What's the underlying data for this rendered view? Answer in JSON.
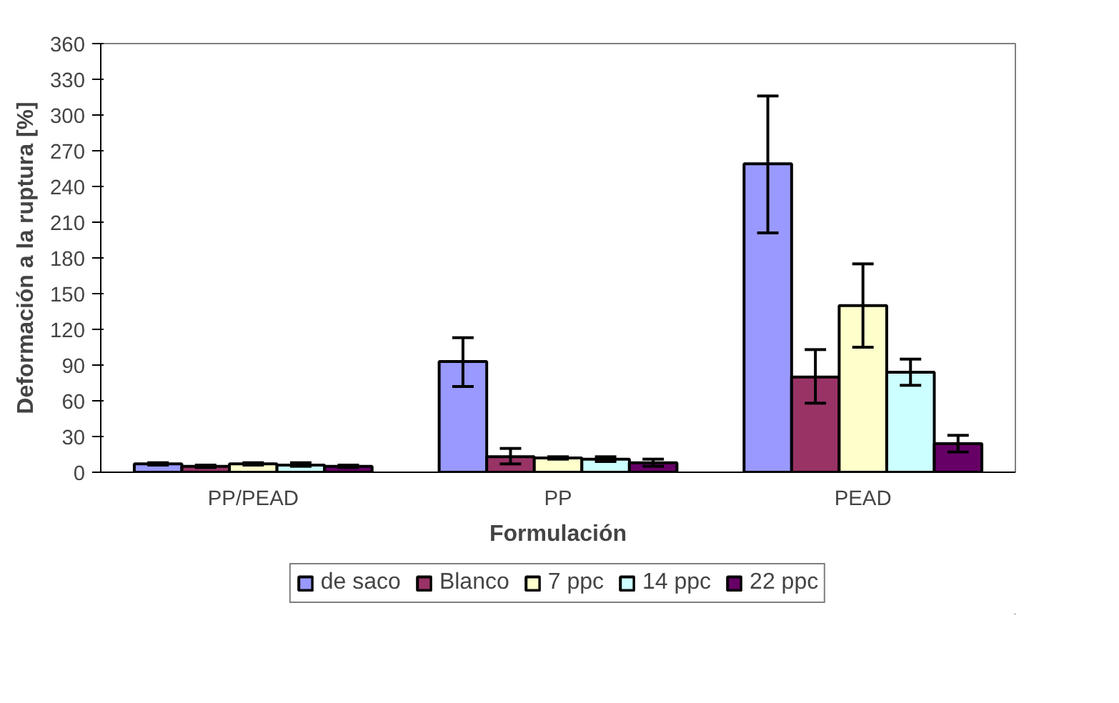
{
  "chart_data": {
    "type": "bar",
    "xlabel": "Formulación",
    "ylabel": "Deformación a la ruptura [%]",
    "categories": [
      "PP/PEAD",
      "PP",
      "PEAD"
    ],
    "series": [
      {
        "name": "de saco",
        "color": "#9999ff",
        "values": [
          7,
          93,
          259
        ],
        "errors": [
          [
            6,
            8
          ],
          [
            72,
            113
          ],
          [
            201,
            316
          ]
        ]
      },
      {
        "name": "Blanco",
        "color": "#993366",
        "values": [
          5,
          13,
          80
        ],
        "errors": [
          [
            4,
            6
          ],
          [
            7,
            20
          ],
          [
            58,
            103
          ]
        ]
      },
      {
        "name": "7 ppc",
        "color": "#ffffcc",
        "values": [
          7,
          12,
          140
        ],
        "errors": [
          [
            6,
            8
          ],
          [
            11,
            13
          ],
          [
            105,
            175
          ]
        ]
      },
      {
        "name": "14 ppc",
        "color": "#ccffff",
        "values": [
          6,
          11,
          84
        ],
        "errors": [
          [
            5,
            8
          ],
          [
            9,
            13
          ],
          [
            73,
            95
          ]
        ]
      },
      {
        "name": "22 ppc",
        "color": "#660066",
        "values": [
          5,
          8,
          24
        ],
        "errors": [
          [
            4,
            6
          ],
          [
            5,
            11
          ],
          [
            17,
            31
          ]
        ]
      }
    ],
    "ylim": [
      0,
      360
    ],
    "yticks": [
      0,
      30,
      60,
      90,
      120,
      150,
      180,
      210,
      240,
      270,
      300,
      330,
      360
    ],
    "grid": false,
    "legend": "bottom"
  }
}
